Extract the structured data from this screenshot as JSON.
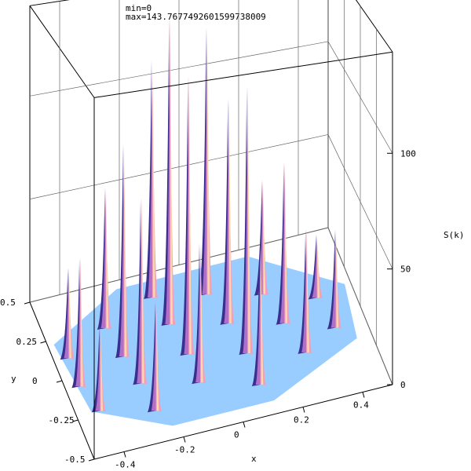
{
  "header": {
    "min_label": "min=0",
    "max_label": "max=143.7677492601599738009"
  },
  "chart_data": {
    "type": "surface3d",
    "title": "",
    "xlabel": "x",
    "ylabel": "y",
    "zlabel": "S(k)",
    "xlim": [
      -0.5,
      0.5
    ],
    "ylim": [
      -0.5,
      0.5
    ],
    "zlim": [
      0,
      143.77
    ],
    "x_ticks": [
      "-0.4",
      "-0.2",
      "0",
      "0.2",
      "0.4"
    ],
    "y_ticks": [
      "0.5",
      "0.25",
      "0",
      "-0.25",
      "-0.5"
    ],
    "z_ticks": [
      "0",
      "50",
      "100"
    ],
    "surface_color": "#99ccff",
    "peak_colors": [
      "#3a2f8f",
      "#b070c8",
      "#f2a0b8",
      "#ffd8b0"
    ],
    "grid": true,
    "peaks_note": "sharp Bragg peaks on a hexagonal lattice",
    "peaks": [
      {
        "x": -0.45,
        "y": 0.13,
        "z": 40
      },
      {
        "x": -0.45,
        "y": -0.05,
        "z": 55
      },
      {
        "x": -0.42,
        "y": -0.22,
        "z": 35
      },
      {
        "x": -0.3,
        "y": 0.25,
        "z": 65
      },
      {
        "x": -0.28,
        "y": 0.06,
        "z": 95
      },
      {
        "x": -0.26,
        "y": -0.12,
        "z": 80
      },
      {
        "x": -0.25,
        "y": -0.3,
        "z": 45
      },
      {
        "x": -0.12,
        "y": 0.36,
        "z": 115
      },
      {
        "x": -0.1,
        "y": 0.18,
        "z": 143.77
      },
      {
        "x": -0.08,
        "y": -0.02,
        "z": 125
      },
      {
        "x": -0.08,
        "y": -0.2,
        "z": 60
      },
      {
        "x": 0.05,
        "y": 0.3,
        "z": 130
      },
      {
        "x": 0.08,
        "y": 0.1,
        "z": 105
      },
      {
        "x": 0.1,
        "y": -0.1,
        "z": 120
      },
      {
        "x": 0.1,
        "y": -0.3,
        "z": 60
      },
      {
        "x": 0.22,
        "y": 0.22,
        "z": 55
      },
      {
        "x": 0.25,
        "y": 0.02,
        "z": 75
      },
      {
        "x": 0.28,
        "y": -0.18,
        "z": 55
      },
      {
        "x": 0.38,
        "y": 0.12,
        "z": 30
      },
      {
        "x": 0.4,
        "y": -0.08,
        "z": 45
      }
    ]
  }
}
